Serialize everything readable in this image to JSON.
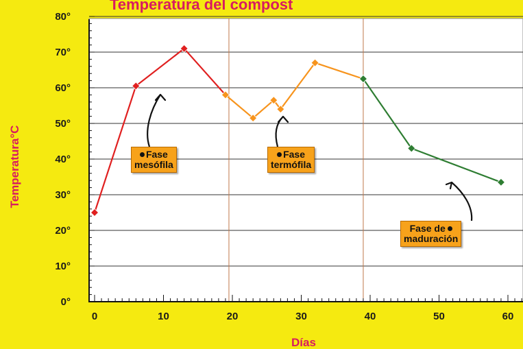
{
  "chart_data": {
    "type": "line",
    "title": "Temperatura del compost",
    "xlabel": "Días",
    "ylabel": "Temperatura°C",
    "xlim": [
      0,
      60
    ],
    "ylim": [
      0,
      80
    ],
    "x_ticks": [
      "0",
      "10",
      "20",
      "30",
      "40",
      "50",
      "60"
    ],
    "y_ticks": [
      "0°",
      "10°",
      "20°",
      "30°",
      "40°",
      "50°",
      "60°",
      "70°",
      "80°"
    ],
    "grid": true,
    "series": [
      {
        "color": "#e02020",
        "points": [
          [
            0,
            25
          ],
          [
            6,
            60.5
          ],
          [
            13,
            71
          ],
          [
            19,
            58
          ]
        ]
      },
      {
        "color": "#f7941d",
        "points": [
          [
            19,
            58
          ],
          [
            23,
            51.5
          ],
          [
            26,
            56.5
          ],
          [
            27,
            54
          ],
          [
            32,
            67
          ],
          [
            39,
            62.5
          ]
        ]
      },
      {
        "color": "#2e7d32",
        "points": [
          [
            39,
            62.5
          ],
          [
            46,
            43
          ],
          [
            59,
            33.5
          ]
        ]
      }
    ],
    "annotations": [
      {
        "line1": "Fase",
        "line2": "mesófila"
      },
      {
        "line1": "Fase",
        "line2": "termófila"
      },
      {
        "line1": "Fase de",
        "line2": "maduración"
      }
    ]
  }
}
